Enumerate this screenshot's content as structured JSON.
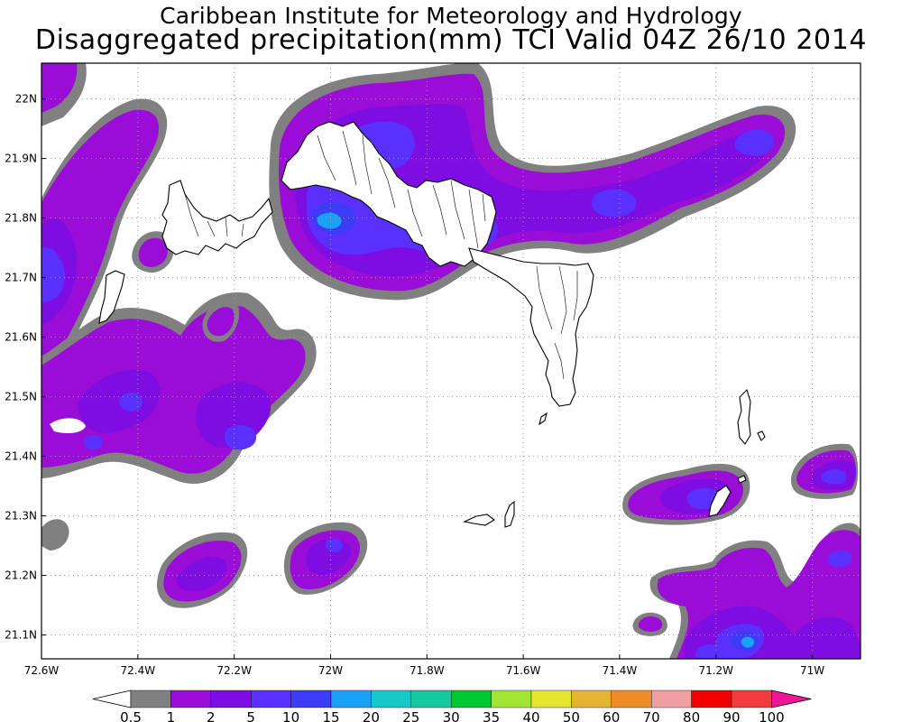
{
  "title": {
    "line1": "Caribbean Institute for Meteorology and Hydrology",
    "line2": "Disaggregated precipitation(mm) TCI Valid 04Z 26/10 2014"
  },
  "map": {
    "lon_range": [
      -72.6,
      -70.9
    ],
    "lat_range": [
      21.06,
      22.06
    ],
    "lon_ticks": [
      {
        "value": -72.6,
        "label": "72.6W"
      },
      {
        "value": -72.4,
        "label": "72.4W"
      },
      {
        "value": -72.2,
        "label": "72.2W"
      },
      {
        "value": -72.0,
        "label": "72W"
      },
      {
        "value": -71.8,
        "label": "71.8W"
      },
      {
        "value": -71.6,
        "label": "71.6W"
      },
      {
        "value": -71.4,
        "label": "71.4W"
      },
      {
        "value": -71.2,
        "label": "71.2W"
      },
      {
        "value": -71.0,
        "label": "71W"
      }
    ],
    "lat_ticks": [
      {
        "value": 22.0,
        "label": "22N"
      },
      {
        "value": 21.9,
        "label": "21.9N"
      },
      {
        "value": 21.8,
        "label": "21.8N"
      },
      {
        "value": 21.7,
        "label": "21.7N"
      },
      {
        "value": 21.6,
        "label": "21.6N"
      },
      {
        "value": 21.5,
        "label": "21.5N"
      },
      {
        "value": 21.4,
        "label": "21.4N"
      },
      {
        "value": 21.3,
        "label": "21.3N"
      },
      {
        "value": 21.2,
        "label": "21.2N"
      },
      {
        "value": 21.1,
        "label": "21.1N"
      }
    ],
    "grid": "dotted"
  },
  "colorbar": {
    "colors": [
      "#808080",
      "#9a0dd6",
      "#7d0de0",
      "#5a30ff",
      "#3c3cf5",
      "#1aa0f5",
      "#18c8c8",
      "#16c8a0",
      "#00c832",
      "#a0e632",
      "#e6e632",
      "#e6b432",
      "#f08c28",
      "#f0a0a0",
      "#f00000",
      "#f03c3c"
    ],
    "levels": [
      "0.5",
      "1",
      "2",
      "5",
      "10",
      "15",
      "20",
      "25",
      "30",
      "35",
      "40",
      "50",
      "60",
      "70",
      "80",
      "90",
      "100"
    ],
    "under_color": "#ffffff",
    "over_color": "#f01496"
  },
  "precip_colors": {
    "c05": "#808080",
    "c1": "#9a0dd6",
    "c2": "#7d0de0",
    "c5": "#5a30ff",
    "c10": "#3c3cf5",
    "c15": "#1aa0f5"
  }
}
